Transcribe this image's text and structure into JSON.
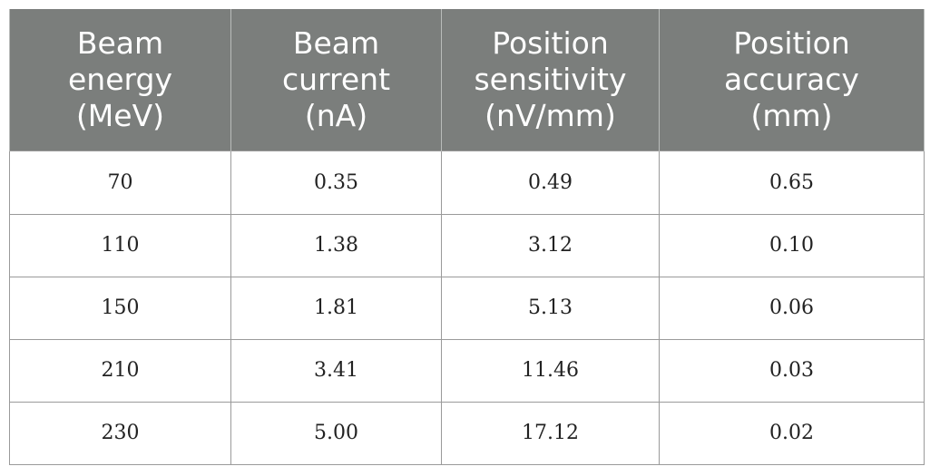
{
  "table": {
    "headers": [
      [
        "Beam",
        "energy",
        "(MeV)"
      ],
      [
        "Beam",
        "current",
        "(nA)"
      ],
      [
        "Position",
        "sensitivity",
        "(nV/mm)"
      ],
      [
        "Position",
        "accuracy",
        "(mm)"
      ]
    ],
    "rows": [
      [
        "70",
        "0.35",
        "0.49",
        "0.65"
      ],
      [
        "110",
        "1.38",
        "3.12",
        "0.10"
      ],
      [
        "150",
        "1.81",
        "5.13",
        "0.06"
      ],
      [
        "210",
        "3.41",
        "11.46",
        "0.03"
      ],
      [
        "230",
        "5.00",
        "17.12",
        "0.02"
      ]
    ]
  },
  "colors": {
    "header_bg": "#7b7e7c",
    "header_text": "#ffffff",
    "grid": "#9a9a9a"
  }
}
